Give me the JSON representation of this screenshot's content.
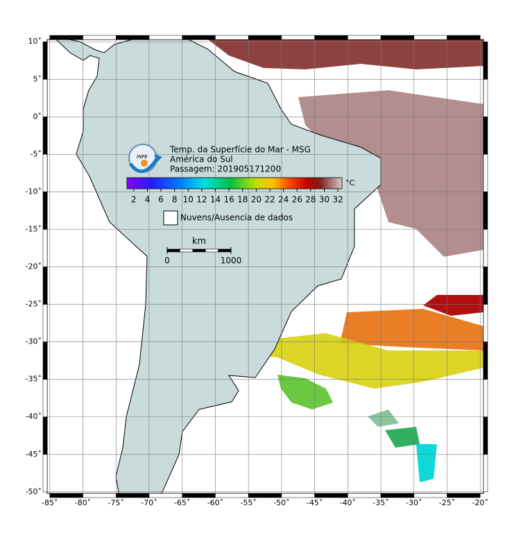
{
  "header": {
    "title": "Temp. da Superfície do Mar - MSG",
    "region": "América do Sul",
    "pass": "Passagem: 201905171200",
    "logo": "INPE"
  },
  "colorbar": {
    "unit": "°C",
    "lim": [
      1,
      32.6
    ],
    "ticks": [
      2,
      4,
      6,
      8,
      10,
      12,
      14,
      16,
      18,
      20,
      22,
      24,
      26,
      28,
      30,
      32
    ]
  },
  "legend": {
    "no_data": "Nuvens/Ausencia de dados"
  },
  "scale_bar": {
    "unit": "km",
    "ticks": [
      0,
      1000
    ]
  },
  "map": {
    "xlim": [
      -85.4,
      -19.5
    ],
    "ylim": [
      -50.2,
      10.3
    ],
    "grid": true,
    "xticks": [
      {
        "value": -85,
        "label": "-85˚"
      },
      {
        "value": -80,
        "label": "-80˚"
      },
      {
        "value": -75,
        "label": "-75˚"
      },
      {
        "value": -70,
        "label": "-70˚"
      },
      {
        "value": -65,
        "label": "-65˚"
      },
      {
        "value": -60,
        "label": "-60˚"
      },
      {
        "value": -55,
        "label": "-55˚"
      },
      {
        "value": -50,
        "label": "-50˚"
      },
      {
        "value": -45,
        "label": "-45˚"
      },
      {
        "value": -40,
        "label": "-40˚"
      },
      {
        "value": -35,
        "label": "-35˚"
      },
      {
        "value": -30,
        "label": "-30˚"
      },
      {
        "value": -25,
        "label": "-25˚"
      },
      {
        "value": -20,
        "label": "-20˚"
      }
    ],
    "yticks": [
      {
        "value": 10,
        "label": "10˚"
      },
      {
        "value": 5,
        "label": "5˚"
      },
      {
        "value": 0,
        "label": "0˚"
      },
      {
        "value": -5,
        "label": "-5˚"
      },
      {
        "value": -10,
        "label": "-10˚"
      },
      {
        "value": -15,
        "label": "-15˚"
      },
      {
        "value": -20,
        "label": "-20˚"
      },
      {
        "value": -25,
        "label": "-25˚"
      },
      {
        "value": -30,
        "label": "-30˚"
      },
      {
        "value": -35,
        "label": "-35˚"
      },
      {
        "value": -40,
        "label": "-40˚"
      },
      {
        "value": -45,
        "label": "-45˚"
      },
      {
        "value": -50,
        "label": "-50˚"
      }
    ]
  }
}
